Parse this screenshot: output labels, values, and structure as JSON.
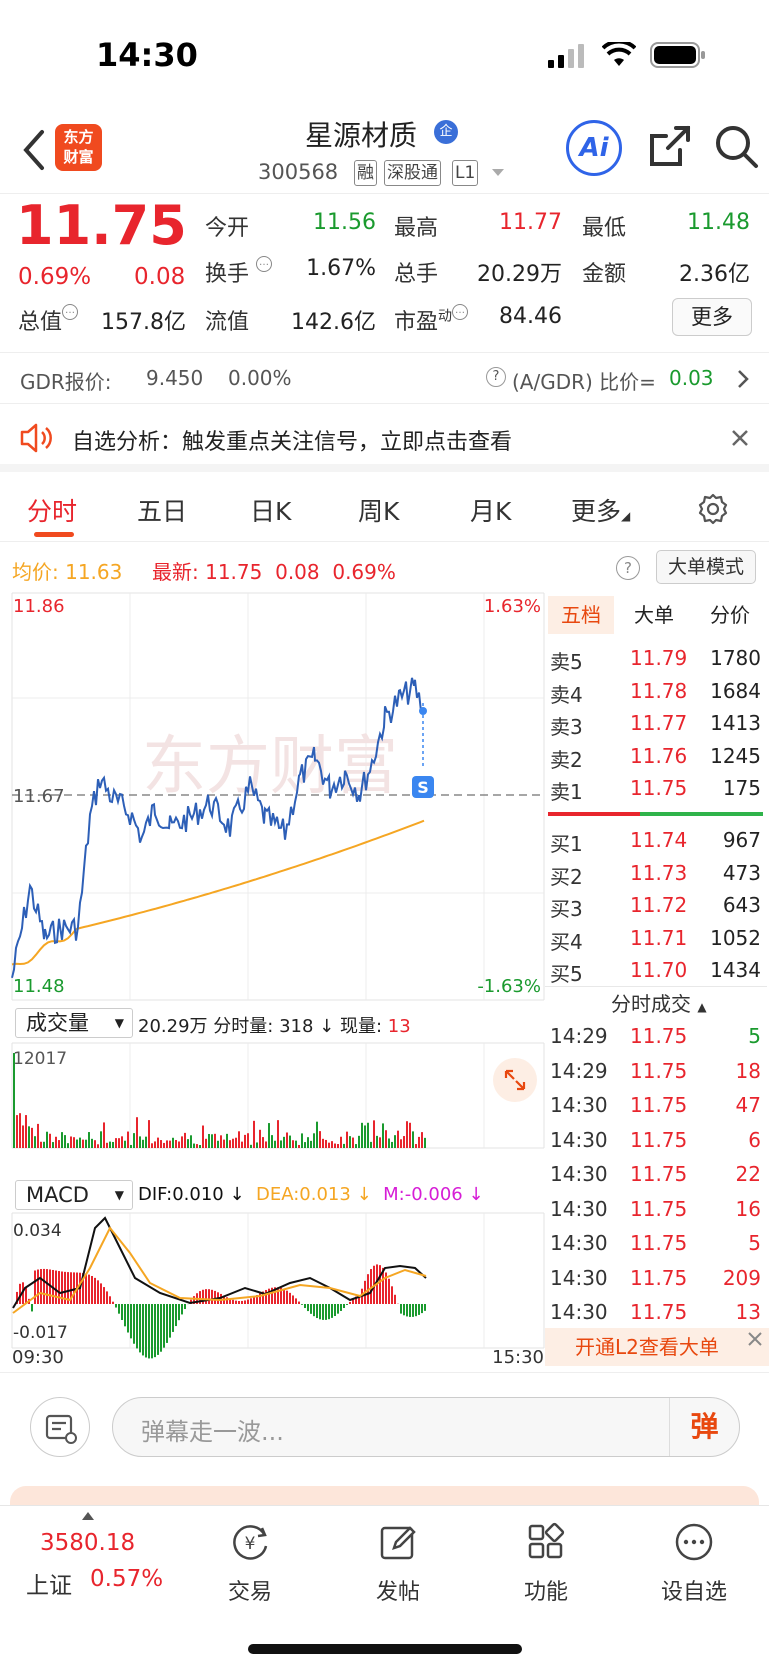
{
  "status_bar": {
    "time": "14:30"
  },
  "header": {
    "logo_line1": "东方",
    "logo_line2": "财富",
    "stock_name": "星源材质",
    "name_badge": "企",
    "stock_code": "300568",
    "tags": [
      "融",
      "深股通",
      "L1"
    ],
    "ai_label": "Ai"
  },
  "quote": {
    "price": "11.75",
    "change_pct": "0.69%",
    "change": "0.08",
    "open_label": "今开",
    "open": "11.56",
    "high_label": "最高",
    "high": "11.77",
    "low_label": "最低",
    "low": "11.48",
    "turnover_label": "换手",
    "turnover": "1.67%",
    "volume_label": "总手",
    "volume": "20.29万",
    "amount_label": "金额",
    "amount": "2.36亿",
    "mktcap_label": "总值",
    "mktcap": "157.8亿",
    "float_label": "流值",
    "float": "142.6亿",
    "pe_label": "市盈",
    "pe_sup": "动",
    "pe": "84.46",
    "more_btn": "更多"
  },
  "gdr": {
    "label": "GDR报价:",
    "price": "9.450",
    "pct": "0.00%",
    "ratio_label": "(A/GDR) 比价=",
    "ratio": "0.03"
  },
  "notice": {
    "text": "自选分析：触发重点关注信号，立即点击查看"
  },
  "tabs": [
    "分时",
    "五日",
    "日K",
    "周K",
    "月K",
    "更多"
  ],
  "info_line": {
    "avg_label": "均价:",
    "avg": "11.63",
    "latest_label": "最新:",
    "latest": "11.75",
    "latest_chg": "0.08",
    "latest_pct": "0.69%",
    "mode_btn": "大单模式"
  },
  "price_chart": {
    "y_top": "11.86",
    "y_mid": "11.67",
    "y_bot": "11.48",
    "pct_top": "1.63%",
    "pct_bot": "-1.63%",
    "watermark": "东方财富",
    "marker": "S"
  },
  "volume": {
    "select": "成交量",
    "total": "20.29万",
    "minute_label": "分时量:",
    "minute": "318",
    "current_label": "现量:",
    "current": "13",
    "y_max": "12017"
  },
  "macd": {
    "select": "MACD",
    "dif": "DIF:0.010",
    "dea": "DEA:0.013",
    "m": "M:-0.006",
    "y_top": "0.034",
    "y_bot": "-0.017",
    "time_start": "09:30",
    "time_end": "15:30"
  },
  "order_book": {
    "tabs": [
      "五档",
      "大单",
      "分价"
    ],
    "asks": [
      {
        "label": "卖5",
        "price": "11.79",
        "vol": "1780"
      },
      {
        "label": "卖4",
        "price": "11.78",
        "vol": "1684"
      },
      {
        "label": "卖3",
        "price": "11.77",
        "vol": "1413"
      },
      {
        "label": "卖2",
        "price": "11.76",
        "vol": "1245"
      },
      {
        "label": "卖1",
        "price": "11.75",
        "vol": "175"
      }
    ],
    "bids": [
      {
        "label": "买1",
        "price": "11.74",
        "vol": "967"
      },
      {
        "label": "买2",
        "price": "11.73",
        "vol": "473"
      },
      {
        "label": "买3",
        "price": "11.72",
        "vol": "643"
      },
      {
        "label": "买4",
        "price": "11.71",
        "vol": "1052"
      },
      {
        "label": "买5",
        "price": "11.70",
        "vol": "1434"
      }
    ],
    "ticks_title": "分时成交",
    "ticks": [
      {
        "time": "14:29",
        "price": "11.75",
        "vol": "5",
        "dir": "buy"
      },
      {
        "time": "14:29",
        "price": "11.75",
        "vol": "18",
        "dir": "sell"
      },
      {
        "time": "14:30",
        "price": "11.75",
        "vol": "47",
        "dir": "sell"
      },
      {
        "time": "14:30",
        "price": "11.75",
        "vol": "6",
        "dir": "sell"
      },
      {
        "time": "14:30",
        "price": "11.75",
        "vol": "22",
        "dir": "sell"
      },
      {
        "time": "14:30",
        "price": "11.75",
        "vol": "16",
        "dir": "sell"
      },
      {
        "time": "14:30",
        "price": "11.75",
        "vol": "5",
        "dir": "sell"
      },
      {
        "time": "14:30",
        "price": "11.75",
        "vol": "209",
        "dir": "sell"
      },
      {
        "time": "14:30",
        "price": "11.75",
        "vol": "13",
        "dir": "sell"
      }
    ],
    "l2_banner": "开通L2查看大单"
  },
  "danmu": {
    "placeholder": "弹幕走一波...",
    "send": "弹"
  },
  "bottom_nav": {
    "index_value": "3580.18",
    "index_name": "上证",
    "index_pct": "0.57%",
    "items": [
      "交易",
      "发帖",
      "功能",
      "设自选"
    ]
  },
  "colors": {
    "up": "#e8252d",
    "down": "#1a9a2e",
    "price_line": "#2d5fb7",
    "avg_line": "#f5a623",
    "brand": "#f04a1f"
  }
}
